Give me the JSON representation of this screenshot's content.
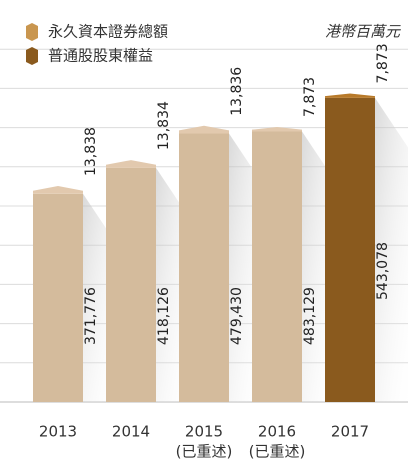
{
  "chart_data": {
    "type": "stacked-bar",
    "unit_label": "港幣百萬元",
    "categories": [
      "2013",
      "2014",
      "2015",
      "2016",
      "2017"
    ],
    "category_notes": [
      null,
      null,
      "(已重述)",
      "(已重述)",
      null
    ],
    "ylim": [
      0,
      700000
    ],
    "grid": true,
    "legend": "top-left",
    "series": [
      {
        "name": "普通股股東權益",
        "color": "#8a5a1e",
        "colors": [
          "#d4bb9c",
          "#d4bb9c",
          "#d4bb9c",
          "#d4bb9c",
          "#8a5a1e"
        ],
        "values": [
          371776,
          418126,
          479430,
          483129,
          543078
        ],
        "value_labels": [
          "371,776",
          "418,126",
          "479,430",
          "483,129",
          "543,078"
        ]
      },
      {
        "name": "永久資本證券總額",
        "color": "#c9964f",
        "colors": [
          "#e2c9ae",
          "#e2c9ae",
          "#e2c9ae",
          "#e2c9ae",
          "#b87a2a"
        ],
        "values": [
          13838,
          13834,
          13836,
          7873,
          7873
        ],
        "value_labels": [
          "13,838",
          "13,834",
          "13,836",
          "7,873",
          "7,873"
        ]
      }
    ]
  }
}
